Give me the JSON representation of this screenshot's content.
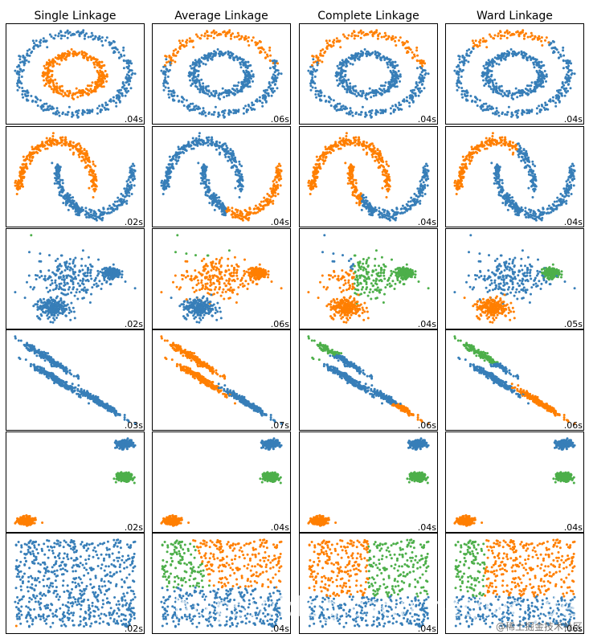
{
  "chart_data": {
    "type": "scatter",
    "column_titles": [
      "Single Linkage",
      "Average Linkage",
      "Complete Linkage",
      "Ward Linkage"
    ],
    "times": [
      [
        ".04s",
        ".06s",
        ".04s",
        ".04s"
      ],
      [
        ".02s",
        ".04s",
        ".04s",
        ".04s"
      ],
      [
        ".02s",
        ".06s",
        ".04s",
        ".05s"
      ],
      [
        ".03s",
        ".07s",
        ".06s",
        ".06s"
      ],
      [
        ".02s",
        ".04s",
        ".04s",
        ".04s"
      ],
      [
        ".02s",
        ".04s",
        ".04s",
        ".06s"
      ]
    ],
    "datasets": [
      "noisy_circles",
      "noisy_moons",
      "varied",
      "aniso",
      "blobs",
      "no_structure"
    ],
    "points_per_dataset": 1500,
    "cluster_colors": [
      "#377eb8",
      "#ff7f00",
      "#4daf4a"
    ],
    "grid": false,
    "axes_ticks": false
  },
  "watermarks": {
    "overlay_text": "https://blog.csdn.net/leo_de",
    "corner_text": "@稀土掘金技术社区"
  }
}
